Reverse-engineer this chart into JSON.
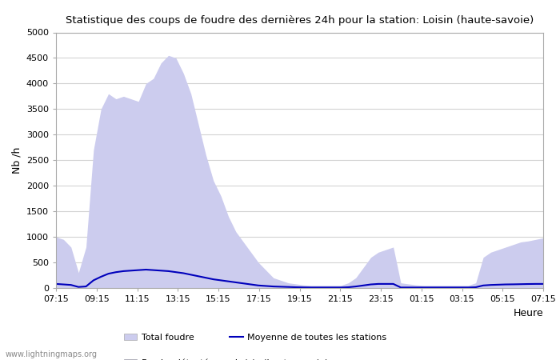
{
  "title": "Statistique des coups de foudre des dernières 24h pour la station: Loisin (haute-savoie)",
  "xlabel": "Heure",
  "ylabel": "Nb /h",
  "ylim": [
    0,
    5000
  ],
  "yticks": [
    0,
    500,
    1000,
    1500,
    2000,
    2500,
    3000,
    3500,
    4000,
    4500,
    5000
  ],
  "xtick_labels": [
    "07:15",
    "09:15",
    "11:15",
    "13:15",
    "15:15",
    "17:15",
    "19:15",
    "21:15",
    "23:15",
    "01:15",
    "03:15",
    "05:15",
    "07:15"
  ],
  "color_total": "#ccccee",
  "color_local": "#8888cc",
  "color_mean": "#0000bb",
  "watermark": "www.lightningmaps.org",
  "legend_total": "Total foudre",
  "legend_local": "Foudre détectée par Loisin (haute-savoie)",
  "legend_mean": "Moyenne de toutes les stations",
  "total_foudre": [
    1000,
    950,
    800,
    300,
    800,
    2700,
    3500,
    3800,
    3700,
    3750,
    3700,
    3650,
    4000,
    4100,
    4400,
    4550,
    4500,
    4200,
    3800,
    3200,
    2600,
    2100,
    1800,
    1400,
    1100,
    900,
    700,
    500,
    350,
    200,
    150,
    100,
    80,
    60,
    50,
    50,
    50,
    50,
    50,
    100,
    200,
    400,
    600,
    700,
    750,
    800,
    100,
    80,
    60,
    50,
    50,
    50,
    50,
    50,
    50,
    50,
    100,
    600,
    700,
    750,
    800,
    850,
    900,
    920,
    950,
    980
  ],
  "local_foudre": [
    0,
    0,
    0,
    0,
    0,
    0,
    0,
    0,
    0,
    0,
    0,
    0,
    0,
    0,
    0,
    0,
    0,
    0,
    0,
    0,
    0,
    0,
    0,
    0,
    0,
    0,
    0,
    0,
    0,
    0,
    0,
    0,
    0,
    0,
    0,
    0,
    0,
    0,
    0,
    0,
    0,
    0,
    0,
    0,
    0,
    0,
    0,
    0,
    0,
    0,
    0,
    0,
    0,
    0,
    0,
    0,
    0,
    0,
    0,
    0,
    0,
    0,
    0,
    0,
    0,
    0
  ],
  "mean_line": [
    80,
    70,
    60,
    20,
    30,
    150,
    220,
    280,
    310,
    330,
    340,
    350,
    360,
    350,
    340,
    330,
    310,
    290,
    260,
    230,
    200,
    170,
    150,
    130,
    110,
    90,
    70,
    50,
    40,
    30,
    25,
    20,
    15,
    12,
    10,
    10,
    10,
    10,
    10,
    15,
    30,
    50,
    70,
    80,
    80,
    80,
    10,
    10,
    10,
    10,
    10,
    10,
    10,
    10,
    10,
    10,
    15,
    50,
    60,
    65,
    70,
    72,
    75,
    78,
    80,
    80
  ]
}
